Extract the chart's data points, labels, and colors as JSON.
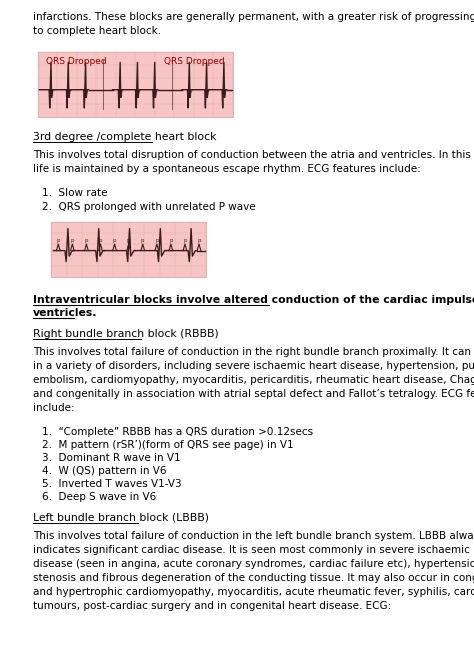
{
  "bg_color": "#ffffff",
  "text_color": "#000000",
  "ecg_bg": "#f7c5c5",
  "ecg_line": "#3a1a1a",
  "ecg_label_color": "#8b0000",
  "intro_text": "infarctions. These blocks are generally permanent, with a greater risk of progressing\nto complete heart block.",
  "ecg1_label_left": "QRS Dropped",
  "ecg1_label_right": "QRS Dropped",
  "heading2": "3rd degree /complete heart block",
  "para2": "This involves total disruption of conduction between the atria and ventricles. In this situation,\nlife is maintained by a spontaneous escape rhythm. ECG features include:",
  "list2": [
    "Slow rate",
    "QRS prolonged with unrelated P wave"
  ],
  "heading3_bold": "Intraventricular blocks involve altered conduction of the cardiac impulse within the\nventricles.",
  "heading4": "Right bundle branch block (RBBB)",
  "para4": "This involves total failure of conduction in the right bundle branch proximally. It can be seen\nin a variety of disorders, including severe ischaemic heart disease, hypertension, pulmonary\nembolism, cardiomyopathy, myocarditis, pericarditis, rheumatic heart disease, Chagas disease\nand congenitally in association with atrial septal defect and Fallot’s tetralogy. ECG features\ninclude:",
  "list4": [
    "“Complete” RBBB has a QRS duration >0.12secs",
    "M pattern (rSR’)(form of QRS see page) in V1",
    "Dominant R wave in V1",
    "W (QS) pattern in V6",
    "Inverted T waves V1-V3",
    "Deep S wave in V6"
  ],
  "heading5": "Left bundle branch block (LBBB)",
  "para5": "This involves total failure of conduction in the left bundle branch system. LBBB always\nindicates significant cardiac disease. It is seen most commonly in severe ischaemic heart\ndisease (seen in angina, acute coronary syndromes, cardiac failure etc), hypertension, aortic\nstenosis and fibrous degeneration of the conducting tissue. It may also occur in congestive\nand hypertrophic cardiomyopathy, myocarditis, acute rheumatic fever, syphilis, cardiac\ntumours, post-cardiac surgery and in congenital heart disease. ECG:"
}
